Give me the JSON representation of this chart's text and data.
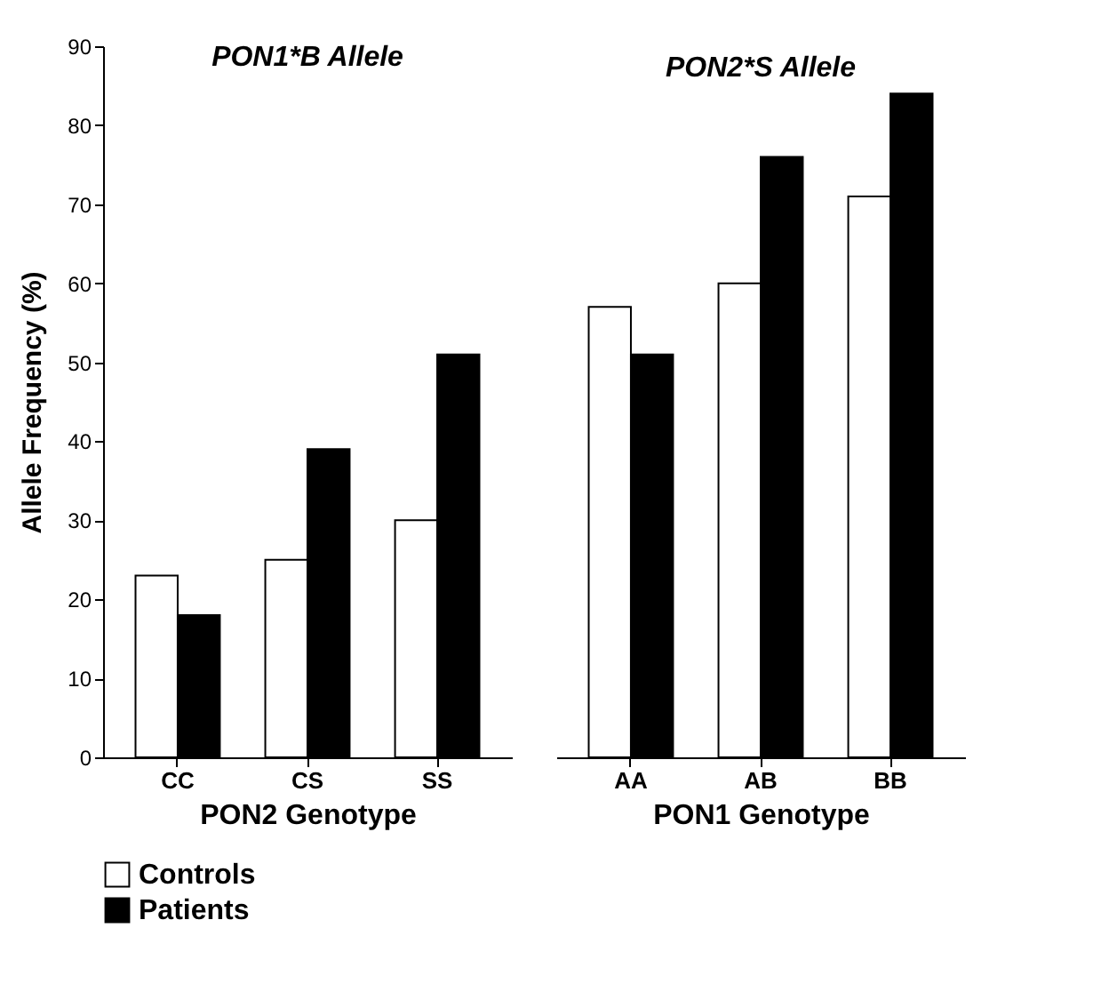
{
  "chart_data": [
    {
      "type": "bar",
      "title": "PON1*B Allele",
      "xlabel": "PON2 Genotype",
      "ylabel": "Allele Frequency (%)",
      "categories": [
        "CC",
        "CS",
        "SS"
      ],
      "series": [
        {
          "name": "Controls",
          "color": "#ffffff",
          "values": [
            23,
            25,
            30
          ]
        },
        {
          "name": "Patients",
          "color": "#000000",
          "values": [
            18,
            39,
            51
          ]
        }
      ],
      "ylim": [
        0,
        90
      ],
      "yticks": [
        0,
        10,
        20,
        30,
        40,
        50,
        60,
        70,
        80,
        90
      ],
      "legend": "bottom"
    },
    {
      "type": "bar",
      "title": "PON2*S  Allele",
      "xlabel": "PON1 Genotype",
      "categories": [
        "AA",
        "AB",
        "BB"
      ],
      "series": [
        {
          "name": "Controls",
          "color": "#ffffff",
          "values": [
            57,
            60,
            71
          ]
        },
        {
          "name": "Patients",
          "color": "#000000",
          "values": [
            51,
            76,
            84
          ]
        }
      ],
      "ylim": [
        0,
        90
      ],
      "yticks": [
        0,
        10,
        20,
        30,
        40,
        50,
        60,
        70,
        80,
        90
      ],
      "tick_labels": "x",
      "legend": "bottom"
    }
  ]
}
